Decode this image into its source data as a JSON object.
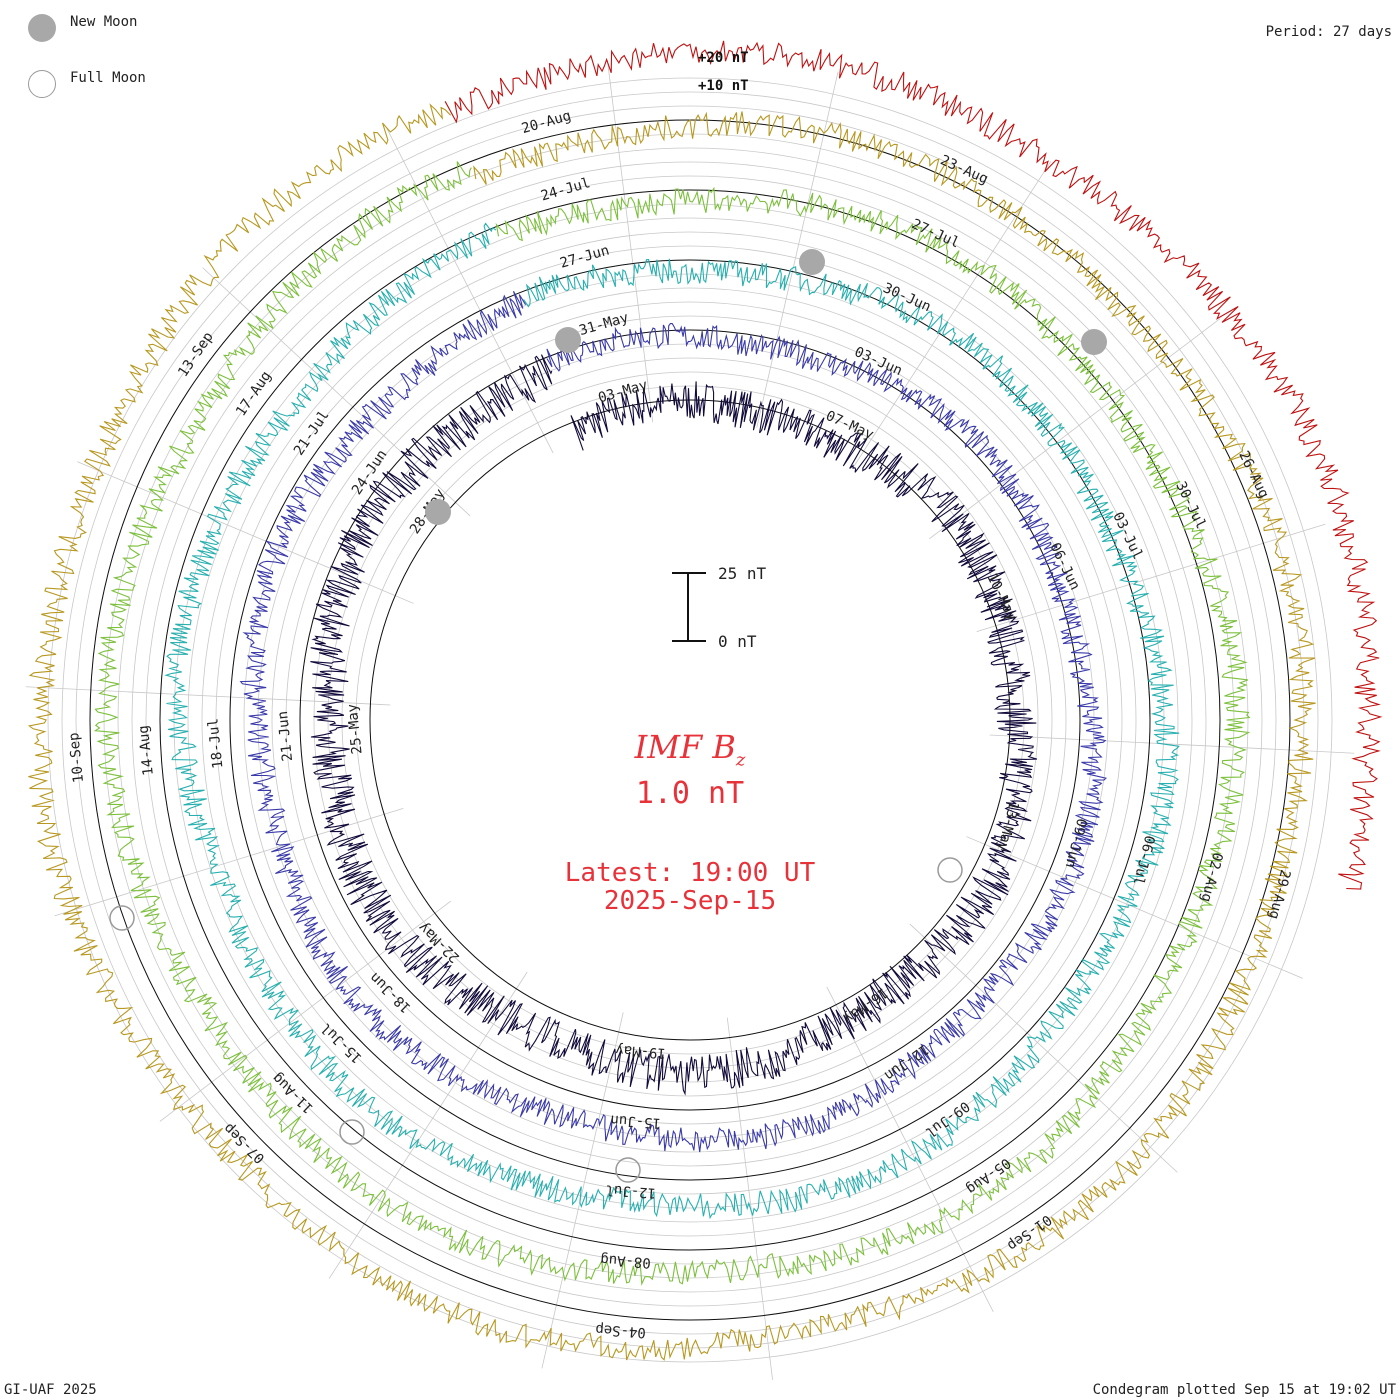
{
  "legend": {
    "new_moon": "New Moon",
    "full_moon": "Full Moon",
    "colors": {
      "new": "#a8a8a8",
      "full": "#9a9a9a"
    }
  },
  "period_label": "Period: 27 days",
  "footer": {
    "left": "GI-UAF 2025",
    "right": "Condegram plotted Sep 15 at 19:02 UT"
  },
  "scale": {
    "top_label": "25 nT",
    "bottom_label": "0 nT"
  },
  "center": {
    "title_main": "IMF B",
    "title_sub": "z",
    "value": "1.0 nT",
    "latest_label": "Latest: 19:00 UT",
    "latest_date": "2025-Sep-15",
    "color": "#e8323a"
  },
  "chart_data": {
    "type": "line",
    "title": "IMF Bz",
    "period_days": 27,
    "ring_labels": [
      "+20 nT",
      "+10 nT"
    ],
    "series": [
      {
        "name": "cycle-1",
        "color": "#120a3a",
        "dates": [
          "03-May",
          "07-May",
          "10-May",
          "13-May",
          "16-May",
          "19-May",
          "22-May",
          "25-May",
          "28-May"
        ]
      },
      {
        "name": "cycle-2",
        "color": "#3a3aaa",
        "dates": [
          "31-May",
          "03-Jun",
          "06-Jun",
          "09-Jun",
          "12-Jun",
          "15-Jun",
          "18-Jun",
          "21-Jun",
          "24-Jun"
        ]
      },
      {
        "name": "cycle-3",
        "color": "#28b0b0",
        "dates": [
          "27-Jun",
          "30-Jun",
          "03-Jul",
          "06-Jul",
          "09-Jul",
          "12-Jul",
          "15-Jul",
          "18-Jul",
          "21-Jul"
        ]
      },
      {
        "name": "cycle-4",
        "color": "#7cc03c",
        "dates": [
          "24-Jul",
          "27-Jul",
          "30-Jul",
          "02-Aug",
          "05-Aug",
          "08-Aug",
          "11-Aug",
          "14-Aug",
          "17-Aug"
        ]
      },
      {
        "name": "cycle-5",
        "color": "#b89820",
        "dates": [
          "20-Aug",
          "23-Aug",
          "26-Aug",
          "29-Aug",
          "01-Sep",
          "04-Sep",
          "07-Sep",
          "10-Sep",
          "13-Sep"
        ]
      }
    ],
    "outer_color": "#c01010",
    "latest_value_nT": 1.0
  }
}
